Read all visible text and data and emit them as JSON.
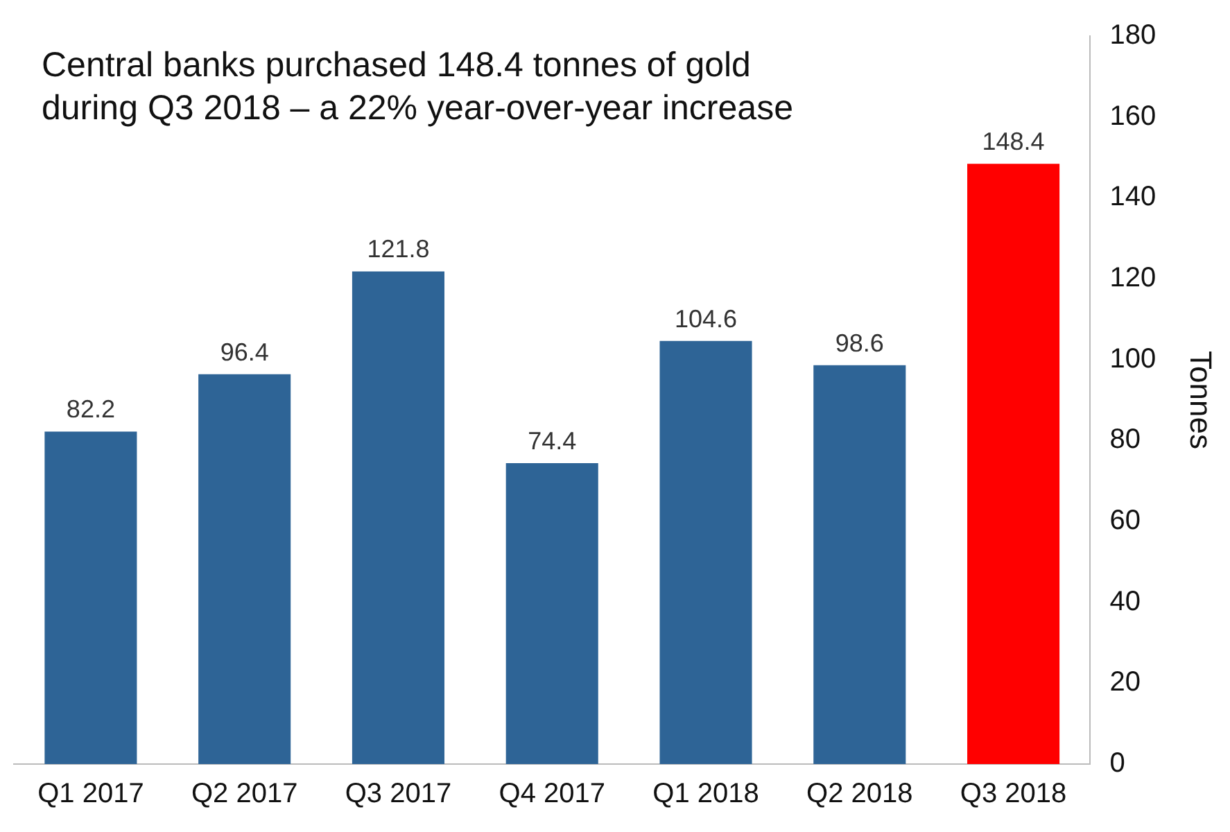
{
  "chart_data": {
    "type": "bar",
    "ylabel": "Tonnes",
    "annotations": [
      "Central banks purchased 148.4 tonnes of gold during Q3 2018 – a 22% year-over-year increase"
    ],
    "categories": [
      "Q1 2017",
      "Q2 2017",
      "Q3 2017",
      "Q4 2017",
      "Q1 2018",
      "Q2 2018",
      "Q3 2018"
    ],
    "values": [
      82.2,
      96.4,
      121.8,
      74.4,
      104.6,
      98.6,
      148.4
    ],
    "colors": [
      "#2e6496",
      "#2e6496",
      "#2e6496",
      "#2e6496",
      "#2e6496",
      "#2e6496",
      "#ff0000"
    ],
    "ylim": [
      0,
      180
    ],
    "yticks": [
      0,
      20,
      40,
      60,
      80,
      100,
      120,
      140,
      160,
      180
    ],
    "grid": false,
    "legend": false,
    "data_labels": true
  }
}
